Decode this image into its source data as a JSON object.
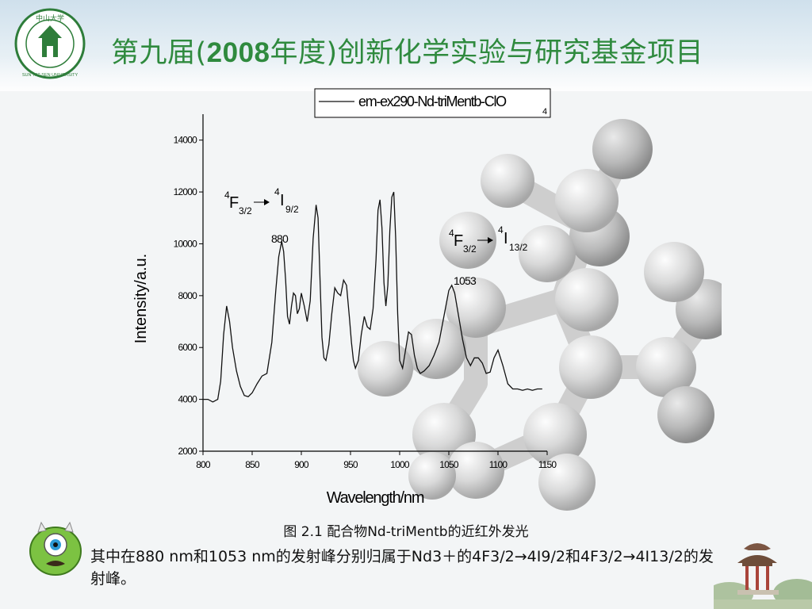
{
  "header": {
    "title_prefix": "第九届(",
    "title_year": "2008",
    "title_suffix": "年度)创新化学实验与研究基金项目",
    "logo_text": "SUN YAT-SEN UNIVERSITY",
    "logo_chars": "中山大学"
  },
  "chart_data": {
    "type": "line",
    "legend": "em-ex290-Nd-triMentb-ClO",
    "legend_subscript": "4",
    "xlabel": "Wavelength/nm",
    "ylabel": "Intensity/a.u.",
    "xlim": [
      800,
      1150
    ],
    "ylim": [
      2000,
      15000
    ],
    "xticks": [
      800,
      850,
      900,
      950,
      1000,
      1050,
      1100,
      1150
    ],
    "yticks": [
      2000,
      4000,
      6000,
      8000,
      10000,
      12000,
      14000
    ],
    "annotations": [
      {
        "label": "880",
        "x": 880
      },
      {
        "label": "1053",
        "x": 1053
      }
    ],
    "transitions": [
      {
        "pre": "4",
        "from": "F",
        "from_sub": "3/2",
        "pre2": "4",
        "to": "I",
        "to_sub": "9/2"
      },
      {
        "pre": "4",
        "from": "F",
        "from_sub": "3/2",
        "pre2": "4",
        "to": "I",
        "to_sub": "13/2"
      }
    ],
    "series": [
      {
        "x": [
          800,
          805,
          810,
          815,
          818,
          821,
          824,
          827,
          830,
          834,
          838,
          842,
          846,
          850,
          855,
          860,
          865,
          870,
          874,
          877,
          880,
          882,
          884,
          886,
          888,
          890,
          892,
          894,
          896,
          898,
          900,
          903,
          906,
          909,
          912,
          915,
          917,
          919,
          921,
          923,
          925,
          928,
          931,
          934,
          937,
          940,
          943,
          946,
          949,
          951,
          953,
          955,
          958,
          961,
          964,
          967,
          970,
          973,
          976,
          978,
          980,
          982,
          984,
          986,
          988,
          990,
          992,
          994,
          996,
          998,
          1000,
          1003,
          1006,
          1009,
          1012,
          1015,
          1018,
          1021,
          1025,
          1030,
          1035,
          1040,
          1045,
          1050,
          1053,
          1056,
          1060,
          1064,
          1068,
          1072,
          1076,
          1080,
          1084,
          1088,
          1092,
          1096,
          1100,
          1105,
          1110,
          1115,
          1120,
          1125,
          1130,
          1135,
          1140,
          1145
        ],
        "y": [
          4000,
          4000,
          3900,
          4000,
          4700,
          6500,
          7600,
          7000,
          6000,
          5100,
          4500,
          4150,
          4100,
          4250,
          4600,
          4900,
          5000,
          6200,
          8200,
          9500,
          10100,
          9700,
          8600,
          7200,
          6900,
          7600,
          8100,
          8000,
          7300,
          7500,
          8100,
          7600,
          7000,
          7800,
          10200,
          11500,
          11000,
          8600,
          6400,
          5600,
          5500,
          6100,
          7300,
          8300,
          8100,
          8000,
          8600,
          8400,
          7100,
          6200,
          5500,
          5200,
          5500,
          6500,
          7200,
          6800,
          6700,
          7500,
          9400,
          11300,
          11700,
          10600,
          8500,
          7600,
          8400,
          10500,
          11800,
          12000,
          10200,
          7300,
          5500,
          5200,
          5900,
          6600,
          6500,
          5700,
          5200,
          5000,
          5100,
          5300,
          5700,
          6200,
          7200,
          8200,
          8400,
          8100,
          7200,
          6300,
          5600,
          5300,
          5600,
          5600,
          5400,
          5000,
          5050,
          5600,
          5900,
          5300,
          4600,
          4400,
          4400,
          4350,
          4400,
          4350,
          4400,
          4400
        ]
      }
    ]
  },
  "caption": "图 2.1 配合物Nd-triMentb的近红外发光",
  "body_text": "其中在880 nm和1053 nm的发射峰分别归属于Nd3＋的4F3/2→4I9/2和4F3/2→4I13/2的发射峰。"
}
